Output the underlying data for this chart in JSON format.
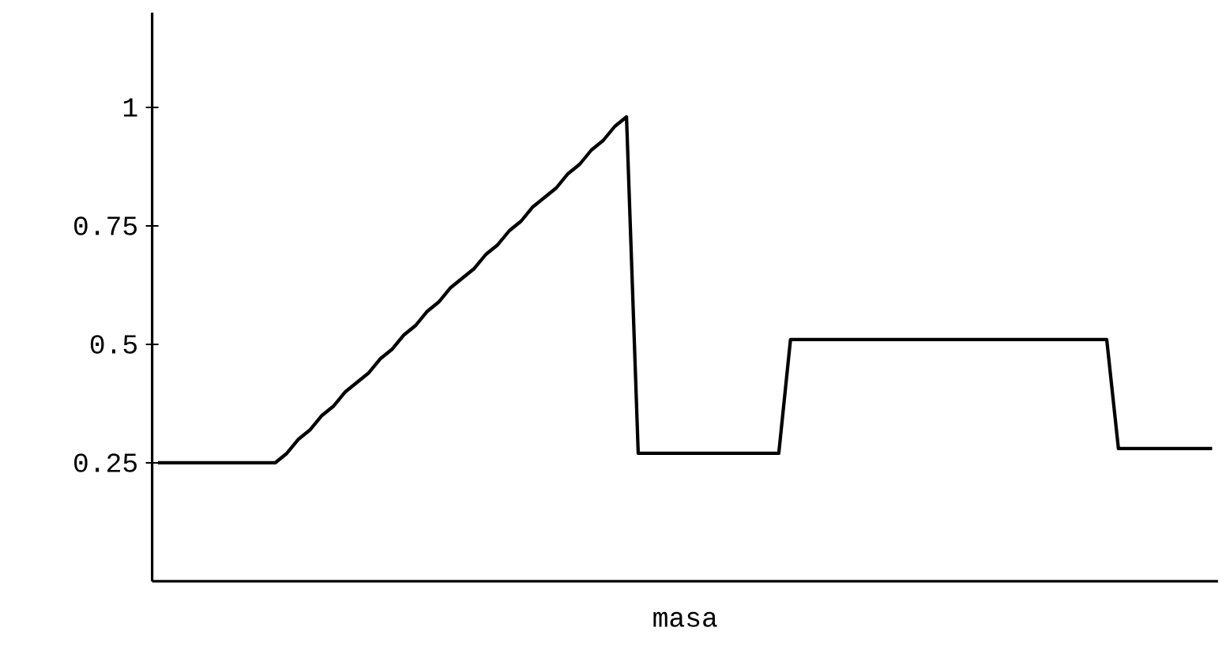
{
  "chart_data": {
    "type": "line",
    "xlabel": "masa",
    "categories": [
      null,
      null,
      null,
      null,
      null,
      null,
      null,
      null,
      null,
      null,
      null,
      null,
      null,
      null,
      null,
      null,
      null,
      null,
      null,
      null,
      null,
      null,
      null,
      null,
      null,
      null,
      null,
      null,
      null,
      null,
      null,
      null,
      null,
      null,
      null,
      null,
      null,
      null,
      null,
      null,
      null,
      null,
      null,
      null,
      null,
      null,
      null,
      null,
      null,
      null,
      null,
      null,
      null,
      null,
      null,
      null,
      null,
      null,
      null,
      null,
      null,
      null,
      null,
      null,
      null,
      null,
      null,
      null,
      null,
      null,
      null,
      null,
      null,
      null,
      null,
      null,
      null,
      null,
      null,
      null,
      null,
      null,
      null,
      null,
      null,
      null,
      null,
      null,
      null,
      null,
      null
    ],
    "values": [
      0.25,
      0.25,
      0.25,
      0.25,
      0.25,
      0.25,
      0.25,
      0.25,
      0.25,
      0.25,
      0.25,
      0.27,
      0.3,
      0.32,
      0.35,
      0.37,
      0.4,
      0.42,
      0.44,
      0.47,
      0.49,
      0.52,
      0.54,
      0.57,
      0.59,
      0.62,
      0.64,
      0.66,
      0.69,
      0.71,
      0.74,
      0.76,
      0.79,
      0.81,
      0.83,
      0.86,
      0.88,
      0.91,
      0.93,
      0.96,
      0.98,
      0.27,
      0.27,
      0.27,
      0.27,
      0.27,
      0.27,
      0.27,
      0.27,
      0.27,
      0.27,
      0.27,
      0.27,
      0.27,
      0.51,
      0.51,
      0.51,
      0.51,
      0.51,
      0.51,
      0.51,
      0.51,
      0.51,
      0.51,
      0.51,
      0.51,
      0.51,
      0.51,
      0.51,
      0.51,
      0.51,
      0.51,
      0.51,
      0.51,
      0.51,
      0.51,
      0.51,
      0.51,
      0.51,
      0.51,
      0.51,
      0.51,
      0.28,
      0.28,
      0.28,
      0.28,
      0.28,
      0.28,
      0.28,
      0.28,
      0.28
    ],
    "color": "#000000",
    "ylim": [
      0,
      1.2
    ],
    "yticks": [
      0.25,
      0.5,
      0.75,
      1
    ],
    "tick_labels": "y",
    "marker": "none",
    "line_style": "solid"
  }
}
